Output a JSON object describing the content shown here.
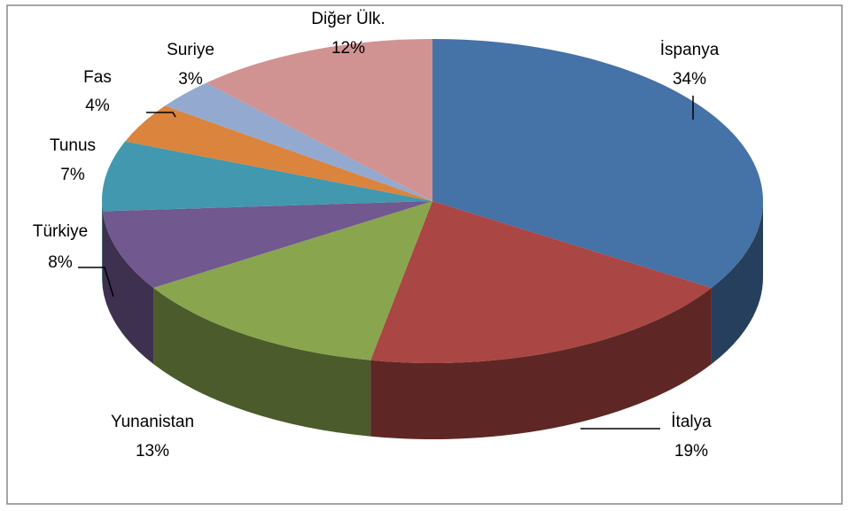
{
  "chart_data": {
    "type": "pie3d",
    "categories": [
      "İspanya",
      "İtalya",
      "Yunanistan",
      "Türkiye",
      "Tunus",
      "Fas",
      "Suriye",
      "Diğer Ülk."
    ],
    "values": [
      34,
      19,
      13,
      8,
      7,
      4,
      3,
      12
    ],
    "value_labels": [
      "34%",
      "19%",
      "13%",
      "8%",
      "7%",
      "4%",
      "3%",
      "12%"
    ],
    "colors": [
      "#4572a7",
      "#aa4643",
      "#89a54e",
      "#71588f",
      "#4198af",
      "#db843d",
      "#93a9cf",
      "#d19392"
    ]
  }
}
